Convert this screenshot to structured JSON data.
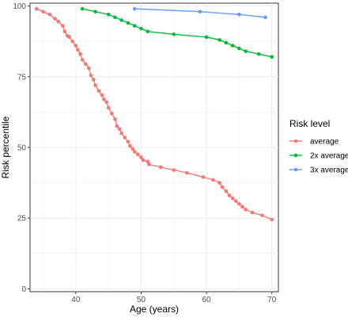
{
  "chart_data": {
    "type": "line",
    "xlabel": "Age (years)",
    "ylabel": "Risk percentile",
    "xlim": [
      33,
      71
    ],
    "ylim": [
      -1,
      101
    ],
    "x_ticks": [
      40,
      50,
      60,
      70
    ],
    "y_ticks": [
      0,
      25,
      50,
      75,
      100
    ],
    "grid": true,
    "legend": {
      "title": "Risk level",
      "placement": "right"
    },
    "series": [
      {
        "name": "average",
        "color": "#F8766D",
        "x": [
          34,
          35,
          36,
          36.8,
          37.3,
          38,
          38.3,
          38.7,
          39,
          39.5,
          40,
          40.3,
          40.7,
          41,
          41.5,
          42,
          42.3,
          42.7,
          43,
          43.5,
          44,
          44.3,
          44.7,
          45,
          45.5,
          46,
          46.3,
          46.7,
          47,
          47.5,
          48,
          48.3,
          48.7,
          49,
          49.5,
          50,
          50.3,
          51,
          51.2,
          53,
          55,
          57,
          59.5,
          61,
          62,
          62.4,
          63,
          63.5,
          64,
          64.5,
          65,
          65.5,
          66,
          67,
          68.5,
          70
        ],
        "y": [
          99,
          98,
          97,
          95.5,
          94.5,
          93,
          91,
          89.5,
          89,
          87.5,
          86,
          84.5,
          83,
          81,
          79.5,
          78,
          75.5,
          74,
          72,
          70,
          68.5,
          67,
          66,
          64,
          62,
          60,
          57.5,
          56.5,
          55,
          53.5,
          52,
          50.5,
          49.5,
          48.5,
          47.5,
          46.5,
          45.5,
          45,
          44,
          43,
          42,
          41,
          39.5,
          38.5,
          37.5,
          36,
          34.5,
          33,
          32,
          31,
          30,
          29,
          28,
          27,
          26,
          24.5
        ]
      },
      {
        "name": "2x average",
        "color": "#00BA38",
        "x": [
          41,
          43,
          45,
          46,
          47,
          48,
          49,
          50,
          51,
          55,
          60,
          62,
          63,
          64,
          65,
          66,
          68,
          70
        ],
        "y": [
          99,
          98,
          97,
          96,
          95,
          94,
          93,
          92,
          91,
          90,
          89,
          88,
          87,
          86,
          85,
          84,
          83,
          82
        ]
      },
      {
        "name": "3x average",
        "color": "#619CFF",
        "x": [
          49,
          59,
          65,
          69
        ],
        "y": [
          99,
          98,
          97,
          96
        ]
      }
    ]
  }
}
